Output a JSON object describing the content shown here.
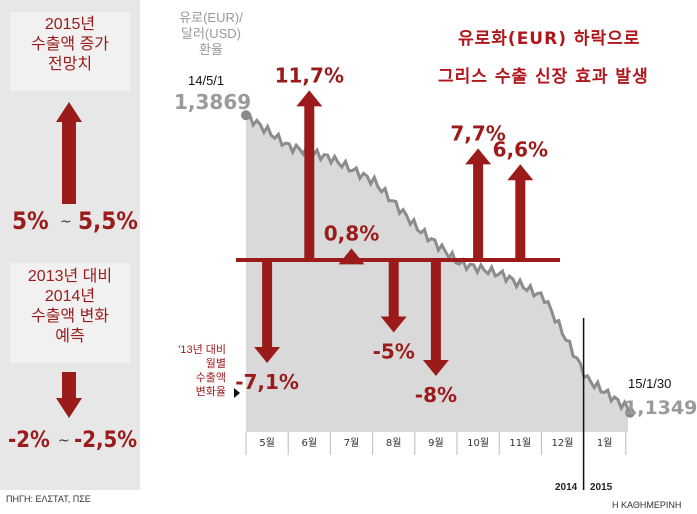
{
  "left": {
    "box1_lines": [
      "2015년",
      "수출액 증가",
      "전망치"
    ],
    "forecast_low": "5%",
    "forecast_high": "5,5%",
    "box2_lines": [
      "2013년 대비",
      "2014년",
      "수출액 변화",
      "예측"
    ],
    "change_low": "-2%",
    "change_high": "-2,5%",
    "tilde": "~"
  },
  "headline": {
    "line1": "유로화(EUR) 하락으로",
    "line2": "그리스 수출 신장 효과 발생"
  },
  "rate_label": [
    "유로(EUR)/",
    "달러(USD)",
    "환율"
  ],
  "start_date": "14/5/1",
  "start_value": "1,3869",
  "end_date": "15/1/30",
  "end_value": "1,1349",
  "side_note": [
    "'13년 대비",
    "월별",
    "수출액",
    "변화율"
  ],
  "year_labels": [
    "2014",
    "2015"
  ],
  "source": "ΠΗΓΗ: ΕΛΣΤΑΤ, ΠΣΕ",
  "publisher": "Η ΚΑΘΗΜΕΡΙΝΗ",
  "colors": {
    "arrow": "#9b1b1b",
    "line": "#8c8c8c",
    "area": "#d9d9d9",
    "headline": "#b0161c"
  },
  "chart_data": [
    {
      "type": "bar",
      "title": "'13년 대비 월별 수출액 변화율",
      "categories": [
        "5월",
        "6월",
        "7월",
        "8월",
        "9월",
        "10월",
        "11월",
        "12월",
        "1월"
      ],
      "values": [
        -7.1,
        11.7,
        0.8,
        -5.0,
        -8.0,
        7.7,
        6.6,
        null,
        null
      ],
      "value_labels": [
        "-7,1%",
        "11,7%",
        "0,8%",
        "-5%",
        "-8%",
        "7,7%",
        "6,6%",
        "",
        ""
      ],
      "ylabel": "%"
    },
    {
      "type": "line",
      "title": "유로(EUR)/달러(USD) 환율",
      "x": [
        "2014-05-01",
        "2014-06-01",
        "2014-07-01",
        "2014-08-01",
        "2014-09-01",
        "2014-10-01",
        "2014-11-01",
        "2014-12-01",
        "2015-01-01",
        "2015-01-30"
      ],
      "y": [
        1.3869,
        1.36,
        1.35,
        1.33,
        1.29,
        1.26,
        1.25,
        1.23,
        1.16,
        1.1349
      ],
      "ylim": [
        1.12,
        1.4
      ]
    }
  ]
}
